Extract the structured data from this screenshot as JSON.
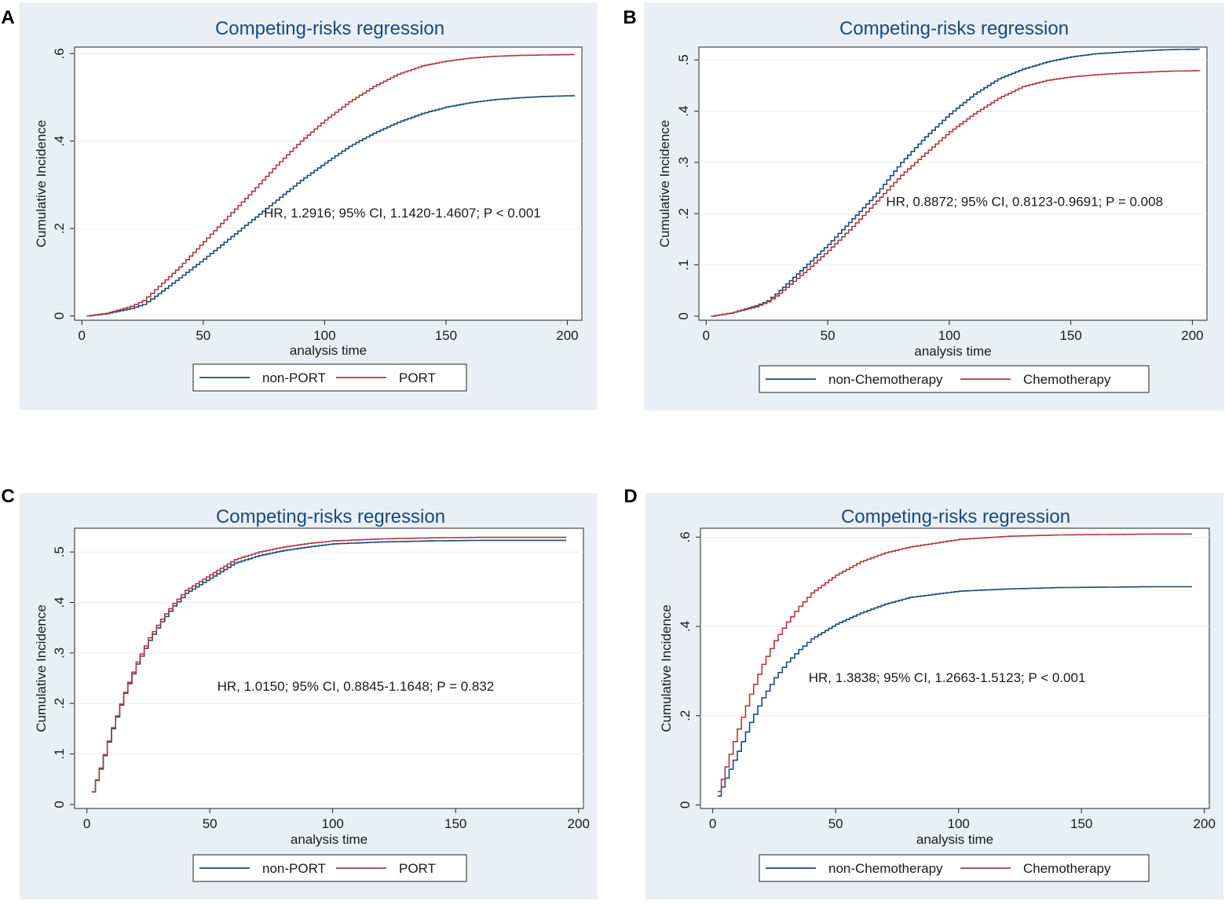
{
  "colors": {
    "panel_bg": "#e9eff4",
    "plot_bg": "#ffffff",
    "grid": "#e9eff4",
    "series_a": "#1a4a7a",
    "series_b": "#b03a3a",
    "title": "#1a4a7a",
    "text": "#1a1a1a"
  },
  "chart_data": [
    {
      "panel_label": "A",
      "type": "line",
      "title": "Competing-risks regression",
      "xlabel": "analysis time",
      "ylabel": "Cumulative Incidence",
      "xlim": [
        -3,
        206
      ],
      "ylim": [
        -0.01,
        0.615
      ],
      "xticks": [
        0,
        50,
        100,
        150,
        200
      ],
      "xtick_labels": [
        "0",
        "50",
        "100",
        "150",
        "200"
      ],
      "yticks": [
        0,
        0.2,
        0.4,
        0.6
      ],
      "ytick_labels": [
        "0",
        ".2",
        ".4",
        ".6"
      ],
      "annotation": "HR, 1.2916; 95% CI, 1.1420-1.4607; P < 0.001",
      "annotation_at": [
        75,
        0.225
      ],
      "legend": [
        "non-PORT",
        "PORT"
      ],
      "series": [
        {
          "name": "non-PORT",
          "x": [
            2,
            10,
            20,
            25,
            30,
            40,
            50,
            60,
            70,
            80,
            90,
            100,
            110,
            120,
            130,
            140,
            150,
            160,
            170,
            180,
            190,
            203
          ],
          "y": [
            0,
            0.005,
            0.017,
            0.026,
            0.045,
            0.087,
            0.13,
            0.175,
            0.22,
            0.265,
            0.31,
            0.35,
            0.388,
            0.418,
            0.443,
            0.463,
            0.478,
            0.488,
            0.495,
            0.499,
            0.502,
            0.504
          ]
        },
        {
          "name": "PORT",
          "x": [
            2,
            10,
            20,
            25,
            30,
            40,
            50,
            60,
            70,
            80,
            90,
            100,
            110,
            120,
            130,
            140,
            150,
            160,
            170,
            180,
            190,
            203
          ],
          "y": [
            0,
            0.006,
            0.022,
            0.035,
            0.06,
            0.112,
            0.17,
            0.228,
            0.285,
            0.345,
            0.4,
            0.448,
            0.49,
            0.525,
            0.553,
            0.572,
            0.583,
            0.59,
            0.594,
            0.596,
            0.597,
            0.598
          ]
        }
      ]
    },
    {
      "panel_label": "B",
      "type": "line",
      "title": "Competing-risks regression",
      "xlabel": "analysis time",
      "ylabel": "Cumulative Incidence",
      "xlim": [
        -3,
        206
      ],
      "ylim": [
        -0.008,
        0.525
      ],
      "xticks": [
        0,
        50,
        100,
        150,
        200
      ],
      "xtick_labels": [
        "0",
        "50",
        "100",
        "150",
        "200"
      ],
      "yticks": [
        0,
        0.1,
        0.2,
        0.3,
        0.4,
        0.5
      ],
      "ytick_labels": [
        "0",
        ".1",
        ".2",
        ".3",
        ".4",
        ".5"
      ],
      "annotation": "HR, 0.8872; 95% CI, 0.8123-0.9691; P = 0.008",
      "annotation_at": [
        74,
        0.215
      ],
      "legend": [
        "non-Chemotherapy",
        "Chemotherapy"
      ],
      "series": [
        {
          "name": "non-Chemotherapy",
          "x": [
            2,
            10,
            20,
            25,
            30,
            40,
            50,
            60,
            70,
            80,
            90,
            100,
            110,
            120,
            130,
            140,
            150,
            160,
            170,
            180,
            190,
            203
          ],
          "y": [
            0,
            0.006,
            0.02,
            0.03,
            0.05,
            0.095,
            0.14,
            0.19,
            0.24,
            0.3,
            0.35,
            0.395,
            0.433,
            0.463,
            0.482,
            0.496,
            0.506,
            0.512,
            0.515,
            0.518,
            0.52,
            0.521
          ]
        },
        {
          "name": "Chemotherapy",
          "x": [
            2,
            10,
            20,
            25,
            30,
            40,
            50,
            60,
            70,
            80,
            90,
            100,
            110,
            120,
            130,
            140,
            150,
            160,
            170,
            180,
            190,
            203
          ],
          "y": [
            0,
            0.006,
            0.018,
            0.028,
            0.045,
            0.085,
            0.128,
            0.175,
            0.225,
            0.275,
            0.318,
            0.36,
            0.395,
            0.425,
            0.448,
            0.46,
            0.467,
            0.471,
            0.474,
            0.476,
            0.478,
            0.479
          ]
        }
      ]
    },
    {
      "panel_label": "C",
      "type": "line",
      "title": "Competing-risks regression",
      "xlabel": "analysis time",
      "ylabel": "Cumulative Incidence",
      "xlim": [
        -5,
        202
      ],
      "ylim": [
        -0.008,
        0.547
      ],
      "xticks": [
        0,
        50,
        100,
        150,
        200
      ],
      "xtick_labels": [
        "0",
        "50",
        "100",
        "150",
        "200"
      ],
      "yticks": [
        0,
        0.1,
        0.2,
        0.3,
        0.4,
        0.5
      ],
      "ytick_labels": [
        "0",
        ".1",
        ".2",
        ".3",
        ".4",
        ".5"
      ],
      "annotation": "HR, 1.0150; 95% CI, 0.8845-1.1648; P = 0.832",
      "annotation_at": [
        53,
        0.225
      ],
      "legend": [
        "non-PORT",
        "PORT"
      ],
      "series": [
        {
          "name": "non-PORT",
          "x": [
            2,
            5,
            10,
            15,
            20,
            25,
            30,
            35,
            40,
            50,
            60,
            70,
            80,
            90,
            100,
            120,
            140,
            160,
            180,
            195
          ],
          "y": [
            0.025,
            0.07,
            0.15,
            0.22,
            0.278,
            0.325,
            0.362,
            0.393,
            0.418,
            0.448,
            0.478,
            0.493,
            0.503,
            0.51,
            0.516,
            0.52,
            0.522,
            0.523,
            0.523,
            0.523
          ]
        },
        {
          "name": "PORT",
          "x": [
            2,
            5,
            10,
            15,
            20,
            25,
            30,
            35,
            40,
            50,
            60,
            70,
            80,
            90,
            100,
            120,
            140,
            160,
            180,
            195
          ],
          "y": [
            0.025,
            0.072,
            0.152,
            0.222,
            0.282,
            0.33,
            0.367,
            0.398,
            0.424,
            0.455,
            0.485,
            0.5,
            0.51,
            0.517,
            0.522,
            0.526,
            0.528,
            0.529,
            0.529,
            0.529
          ]
        }
      ]
    },
    {
      "panel_label": "D",
      "type": "line",
      "title": "Competing-risks regression",
      "xlabel": "analysis time",
      "ylabel": "Cumulative Incidence",
      "xlim": [
        -5,
        202
      ],
      "ylim": [
        -0.008,
        0.62
      ],
      "xticks": [
        0,
        50,
        100,
        150,
        200
      ],
      "xtick_labels": [
        "0",
        "50",
        "100",
        "150",
        "200"
      ],
      "yticks": [
        0,
        0.2,
        0.4,
        0.6
      ],
      "ytick_labels": [
        "0",
        ".2",
        ".4",
        ".6"
      ],
      "annotation": "HR, 1.3838; 95% CI, 1.2663-1.5123; P < 0.001",
      "annotation_at": [
        39,
        0.275
      ],
      "legend": [
        "non-Chemotherapy",
        "Chemotherapy"
      ],
      "series": [
        {
          "name": "non-Chemotherapy",
          "x": [
            2,
            5,
            10,
            15,
            20,
            25,
            30,
            35,
            40,
            50,
            60,
            70,
            80,
            100,
            120,
            140,
            160,
            180,
            195
          ],
          "y": [
            0.02,
            0.06,
            0.12,
            0.185,
            0.24,
            0.285,
            0.32,
            0.348,
            0.372,
            0.405,
            0.43,
            0.45,
            0.465,
            0.479,
            0.484,
            0.487,
            0.488,
            0.489,
            0.489
          ]
        },
        {
          "name": "Chemotherapy",
          "x": [
            2,
            5,
            10,
            15,
            20,
            25,
            30,
            35,
            40,
            50,
            60,
            70,
            80,
            100,
            120,
            140,
            160,
            180,
            195
          ],
          "y": [
            0.03,
            0.085,
            0.17,
            0.248,
            0.315,
            0.368,
            0.41,
            0.445,
            0.475,
            0.515,
            0.545,
            0.565,
            0.578,
            0.595,
            0.602,
            0.605,
            0.606,
            0.607,
            0.607
          ]
        }
      ]
    }
  ]
}
